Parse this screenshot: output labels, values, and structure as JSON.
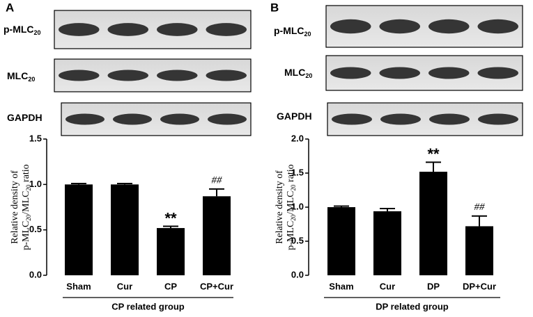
{
  "chart_data": [
    {
      "type": "bar",
      "panel": "A",
      "blot_labels": [
        {
          "text": "p-MLC",
          "sub": "20"
        },
        {
          "text": "MLC",
          "sub": "20"
        },
        {
          "text": "GAPDH"
        }
      ],
      "y_label": [
        "Relative density of",
        {
          "text": "p-MLC",
          "sub": "20",
          "text2": "/MLC",
          "sub2": "20",
          "text3": " ratio"
        }
      ],
      "x_label": "CP related group",
      "categories": [
        "Sham",
        "Cur",
        "CP",
        "CP+Cur"
      ],
      "values": [
        1.0,
        1.0,
        0.52,
        0.87
      ],
      "errors": [
        0.01,
        0.01,
        0.02,
        0.08
      ],
      "bar_labels": [
        null,
        null,
        "**",
        "##"
      ],
      "color": "#000000",
      "ylim": [
        0,
        1.5
      ],
      "yticks": [
        {
          "value": 0,
          "label": "0.0"
        },
        0.5,
        {
          "value": 1,
          "label": "1.0"
        },
        1.5
      ]
    },
    {
      "type": "bar",
      "panel": "B",
      "blot_labels": [
        {
          "text": "p-MLC",
          "sub": "20"
        },
        {
          "text": "MLC",
          "sub": "20"
        },
        {
          "text": "GAPDH"
        }
      ],
      "y_label": [
        "Relative density of",
        {
          "text": "p-MLC",
          "sub": "20",
          "text2": "/MLC",
          "sub2": "20",
          "text3": " ratio"
        }
      ],
      "x_label": "DP related group",
      "categories": [
        "Sham",
        "Cur",
        "DP",
        "DP+Cur"
      ],
      "values": [
        1.0,
        0.94,
        1.52,
        0.72
      ],
      "errors": [
        0.015,
        0.04,
        0.14,
        0.15
      ],
      "bar_labels": [
        null,
        null,
        "**",
        "##"
      ],
      "color": "#000000",
      "ylim": [
        0,
        2
      ],
      "yticks": [
        {
          "value": 0,
          "label": "0.0"
        },
        0.5,
        {
          "value": 1,
          "label": "1.0"
        },
        1.5,
        {
          "value": 2,
          "label": "2.0"
        }
      ]
    }
  ]
}
